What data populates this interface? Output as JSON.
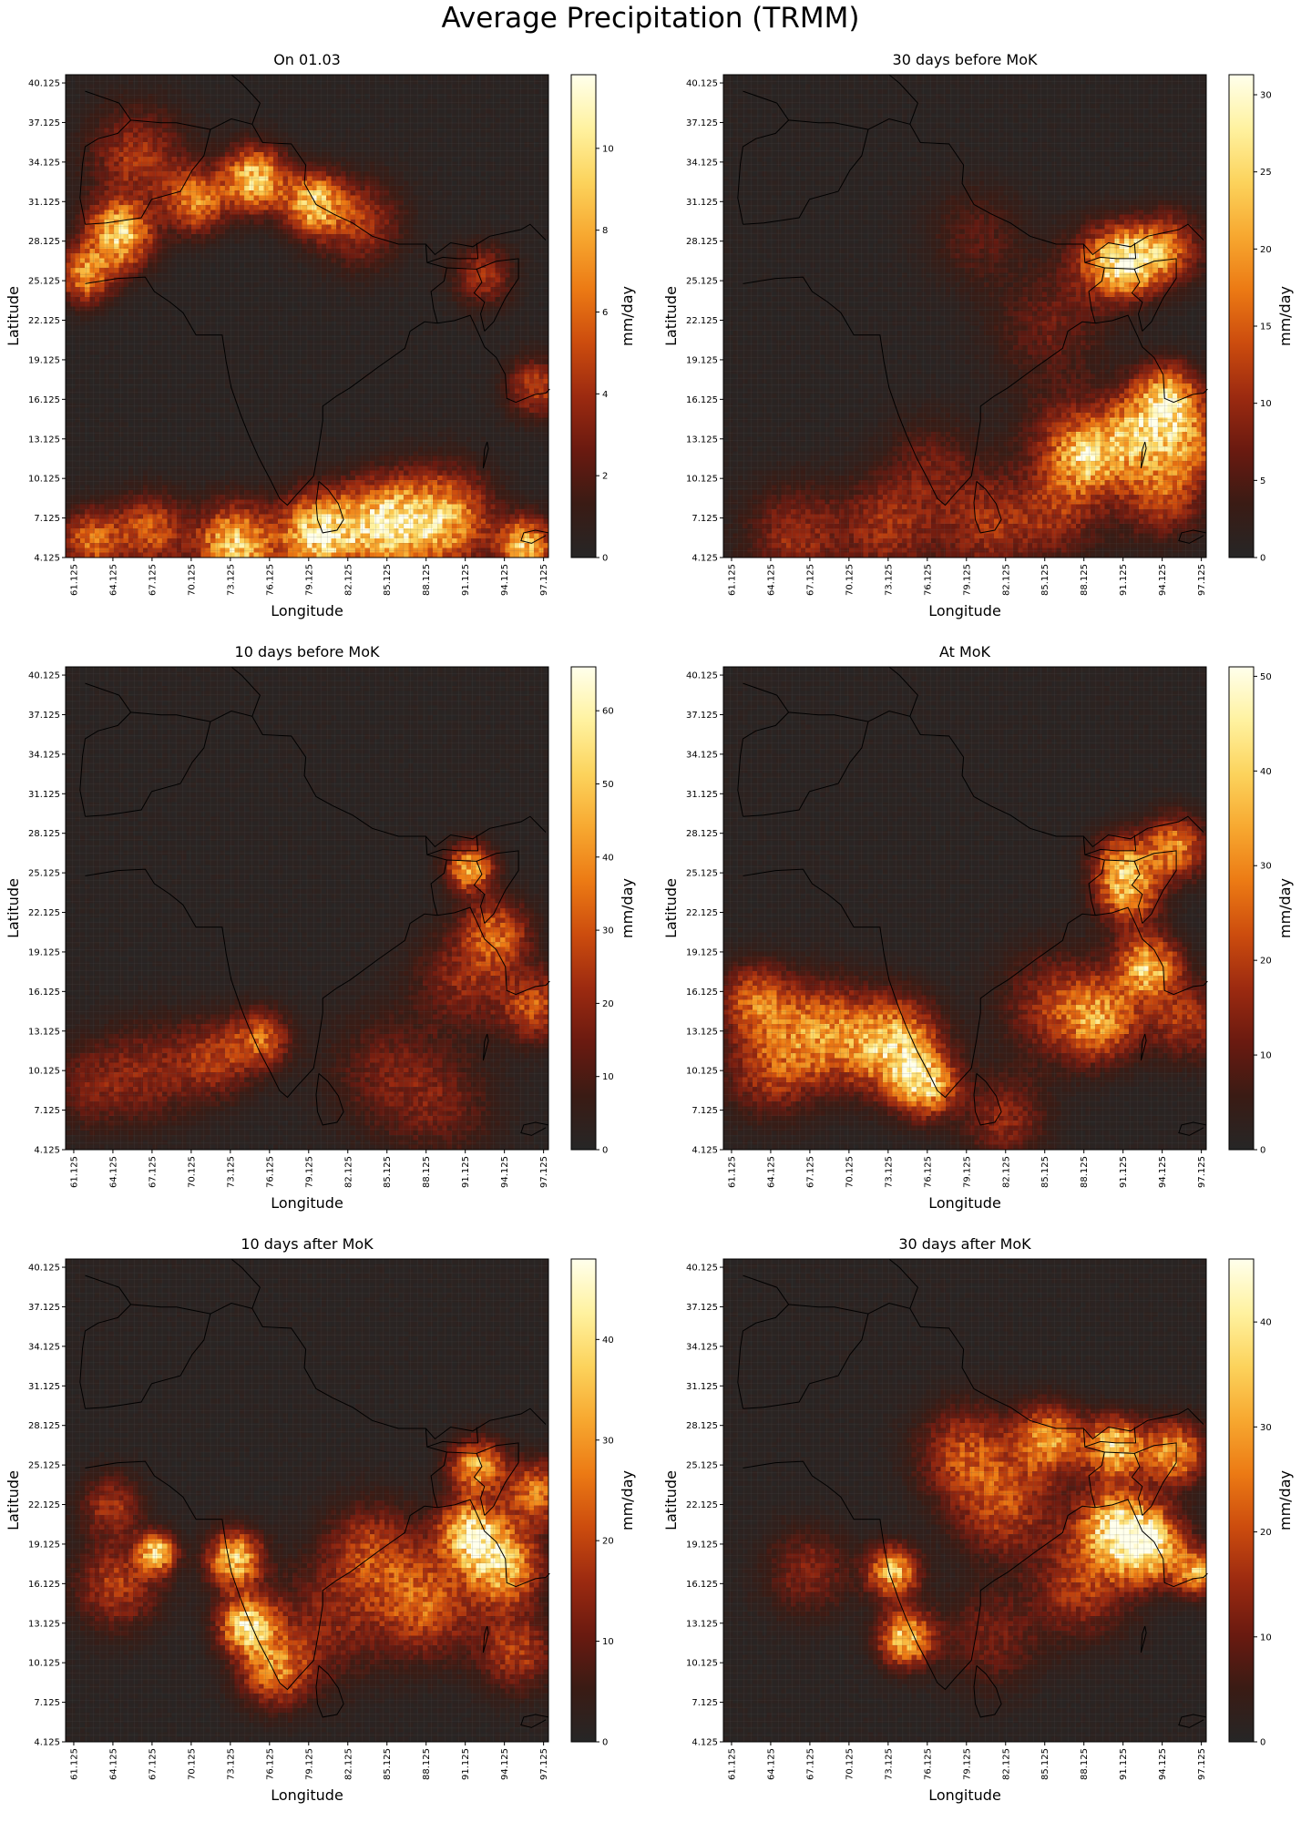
{
  "figure": {
    "title": "Average Precipitation (TRMM)"
  },
  "colormap": [
    "#262626",
    "#3a1b14",
    "#6a1a10",
    "#9c2a10",
    "#cc4c0e",
    "#ec7a14",
    "#f7a830",
    "#fcd35c",
    "#fff2a0",
    "#ffffec"
  ],
  "colors": {
    "coastline": "#000000",
    "grid": "#5a5a5a"
  },
  "chart_data": [
    {
      "type": "heatmap",
      "title": "On 01.03",
      "xlabel": "Longitude",
      "ylabel": "Latitude",
      "colorbar_label": "mm/day",
      "x_ticks": [
        "61.125",
        "64.125",
        "67.125",
        "70.125",
        "73.125",
        "76.125",
        "79.125",
        "82.125",
        "85.125",
        "88.125",
        "91.125",
        "94.125",
        "97.125"
      ],
      "y_ticks": [
        "40.125",
        "37.125",
        "34.125",
        "31.125",
        "28.125",
        "25.125",
        "22.125",
        "19.125",
        "16.125",
        "13.125",
        "10.125",
        "7.125",
        "4.125"
      ],
      "xlim": [
        60.5,
        97.5
      ],
      "ylim": [
        4.125,
        40.75
      ],
      "colorbar_range": [
        0,
        11.8
      ],
      "colorbar_ticks": [
        0,
        2,
        4,
        6,
        8,
        10
      ],
      "hotspots": [
        {
          "lon": 64.6,
          "lat": 28.6,
          "value": 9.5,
          "sigma": 1.7
        },
        {
          "lon": 62.0,
          "lat": 25.5,
          "value": 7.0,
          "sigma": 1.4
        },
        {
          "lon": 70.5,
          "lat": 31.2,
          "value": 6.5,
          "sigma": 1.6
        },
        {
          "lon": 75.0,
          "lat": 32.8,
          "value": 9.5,
          "sigma": 1.6
        },
        {
          "lon": 79.5,
          "lat": 31.0,
          "value": 9.0,
          "sigma": 1.5
        },
        {
          "lon": 83.0,
          "lat": 29.5,
          "value": 4.0,
          "sigma": 2.2
        },
        {
          "lon": 66.0,
          "lat": 34.5,
          "value": 4.0,
          "sigma": 2.5
        },
        {
          "lon": 62.5,
          "lat": 5.4,
          "value": 6.0,
          "sigma": 1.6
        },
        {
          "lon": 67.0,
          "lat": 6.2,
          "value": 5.5,
          "sigma": 1.8
        },
        {
          "lon": 73.5,
          "lat": 5.0,
          "value": 9.5,
          "sigma": 2.0
        },
        {
          "lon": 80.0,
          "lat": 6.0,
          "value": 10.5,
          "sigma": 2.0
        },
        {
          "lon": 85.0,
          "lat": 6.6,
          "value": 10.0,
          "sigma": 2.2
        },
        {
          "lon": 89.5,
          "lat": 7.0,
          "value": 8.0,
          "sigma": 2.4
        },
        {
          "lon": 95.8,
          "lat": 5.0,
          "value": 9.0,
          "sigma": 1.4
        },
        {
          "lon": 96.5,
          "lat": 17.0,
          "value": 4.5,
          "sigma": 1.5
        },
        {
          "lon": 92.5,
          "lat": 25.5,
          "value": 4.0,
          "sigma": 1.5
        }
      ]
    },
    {
      "type": "heatmap",
      "title": "30 days before MoK",
      "xlabel": "Longitude",
      "ylabel": "Latitude",
      "colorbar_label": "mm/day",
      "x_ticks": [
        "61.125",
        "64.125",
        "67.125",
        "70.125",
        "73.125",
        "76.125",
        "79.125",
        "82.125",
        "85.125",
        "88.125",
        "91.125",
        "94.125",
        "97.125"
      ],
      "y_ticks": [
        "40.125",
        "37.125",
        "34.125",
        "31.125",
        "28.125",
        "25.125",
        "22.125",
        "19.125",
        "16.125",
        "13.125",
        "10.125",
        "7.125",
        "4.125"
      ],
      "xlim": [
        60.5,
        97.5
      ],
      "ylim": [
        4.125,
        40.75
      ],
      "colorbar_range": [
        0,
        31.3
      ],
      "colorbar_ticks": [
        0,
        5,
        10,
        15,
        20,
        25,
        30
      ],
      "hotspots": [
        {
          "lon": 91.5,
          "lat": 26.5,
          "value": 24.0,
          "sigma": 1.6
        },
        {
          "lon": 94.5,
          "lat": 27.5,
          "value": 15.0,
          "sigma": 1.8
        },
        {
          "lon": 89.5,
          "lat": 26.5,
          "value": 11.0,
          "sigma": 2.0
        },
        {
          "lon": 94.5,
          "lat": 16.2,
          "value": 22.0,
          "sigma": 1.7
        },
        {
          "lon": 92.0,
          "lat": 13.5,
          "value": 18.0,
          "sigma": 2.0
        },
        {
          "lon": 88.5,
          "lat": 11.5,
          "value": 16.0,
          "sigma": 1.8
        },
        {
          "lon": 96.0,
          "lat": 13.0,
          "value": 15.0,
          "sigma": 2.0
        },
        {
          "lon": 94.0,
          "lat": 9.0,
          "value": 13.0,
          "sigma": 2.2
        },
        {
          "lon": 87.0,
          "lat": 13.0,
          "value": 9.0,
          "sigma": 2.5
        },
        {
          "lon": 66.0,
          "lat": 5.8,
          "value": 9.5,
          "sigma": 2.5
        },
        {
          "lon": 73.0,
          "lat": 6.3,
          "value": 10.0,
          "sigma": 2.5
        },
        {
          "lon": 80.5,
          "lat": 6.5,
          "value": 9.5,
          "sigma": 2.5
        },
        {
          "lon": 86.0,
          "lat": 7.5,
          "value": 9.0,
          "sigma": 2.5
        },
        {
          "lon": 76.5,
          "lat": 11.0,
          "value": 6.0,
          "sigma": 2.5
        },
        {
          "lon": 80.0,
          "lat": 28.5,
          "value": 5.0,
          "sigma": 2.5
        },
        {
          "lon": 85.5,
          "lat": 21.5,
          "value": 6.0,
          "sigma": 3.0
        }
      ]
    },
    {
      "type": "heatmap",
      "title": "10 days before MoK",
      "xlabel": "Longitude",
      "ylabel": "Latitude",
      "colorbar_label": "mm/day",
      "x_ticks": [
        "61.125",
        "64.125",
        "67.125",
        "70.125",
        "73.125",
        "76.125",
        "79.125",
        "82.125",
        "85.125",
        "88.125",
        "91.125",
        "94.125",
        "97.125"
      ],
      "y_ticks": [
        "40.125",
        "37.125",
        "34.125",
        "31.125",
        "28.125",
        "25.125",
        "22.125",
        "19.125",
        "16.125",
        "13.125",
        "10.125",
        "7.125",
        "4.125"
      ],
      "xlim": [
        60.5,
        97.5
      ],
      "ylim": [
        4.125,
        40.75
      ],
      "colorbar_range": [
        0,
        66
      ],
      "colorbar_ticks": [
        0,
        10,
        20,
        30,
        40,
        50,
        60
      ],
      "hotspots": [
        {
          "lon": 91.5,
          "lat": 25.5,
          "value": 45.0,
          "sigma": 1.2
        },
        {
          "lon": 93.5,
          "lat": 20.5,
          "value": 30.0,
          "sigma": 1.8
        },
        {
          "lon": 96.5,
          "lat": 15.0,
          "value": 28.0,
          "sigma": 1.8
        },
        {
          "lon": 91.0,
          "lat": 17.0,
          "value": 18.0,
          "sigma": 2.5
        },
        {
          "lon": 75.5,
          "lat": 12.5,
          "value": 30.0,
          "sigma": 1.5
        },
        {
          "lon": 72.0,
          "lat": 11.0,
          "value": 22.0,
          "sigma": 2.0
        },
        {
          "lon": 67.0,
          "lat": 10.0,
          "value": 16.0,
          "sigma": 2.5
        },
        {
          "lon": 62.5,
          "lat": 9.0,
          "value": 14.0,
          "sigma": 2.2
        },
        {
          "lon": 85.0,
          "lat": 10.0,
          "value": 13.0,
          "sigma": 3.0
        },
        {
          "lon": 89.5,
          "lat": 7.5,
          "value": 12.0,
          "sigma": 2.8
        }
      ]
    },
    {
      "type": "heatmap",
      "title": "At MoK",
      "xlabel": "Longitude",
      "ylabel": "Latitude",
      "colorbar_label": "mm/day",
      "x_ticks": [
        "61.125",
        "64.125",
        "67.125",
        "70.125",
        "73.125",
        "76.125",
        "79.125",
        "82.125",
        "85.125",
        "88.125",
        "91.125",
        "94.125",
        "97.125"
      ],
      "y_ticks": [
        "40.125",
        "37.125",
        "34.125",
        "31.125",
        "28.125",
        "25.125",
        "22.125",
        "19.125",
        "16.125",
        "13.125",
        "10.125",
        "7.125",
        "4.125"
      ],
      "xlim": [
        60.5,
        97.5
      ],
      "ylim": [
        4.125,
        40.75
      ],
      "colorbar_range": [
        0,
        51
      ],
      "colorbar_ticks": [
        0,
        10,
        20,
        30,
        40,
        50
      ],
      "hotspots": [
        {
          "lon": 73.5,
          "lat": 12.0,
          "value": 40.0,
          "sigma": 2.3
        },
        {
          "lon": 76.0,
          "lat": 9.0,
          "value": 36.0,
          "sigma": 1.6
        },
        {
          "lon": 68.0,
          "lat": 13.0,
          "value": 28.0,
          "sigma": 2.5
        },
        {
          "lon": 63.0,
          "lat": 15.5,
          "value": 24.0,
          "sigma": 1.8
        },
        {
          "lon": 64.0,
          "lat": 10.5,
          "value": 18.0,
          "sigma": 2.5
        },
        {
          "lon": 93.0,
          "lat": 18.0,
          "value": 38.0,
          "sigma": 1.6
        },
        {
          "lon": 91.5,
          "lat": 23.5,
          "value": 30.0,
          "sigma": 1.6
        },
        {
          "lon": 89.5,
          "lat": 14.0,
          "value": 28.0,
          "sigma": 2.0
        },
        {
          "lon": 95.0,
          "lat": 27.0,
          "value": 30.0,
          "sigma": 1.6
        },
        {
          "lon": 91.0,
          "lat": 26.0,
          "value": 25.0,
          "sigma": 1.5
        },
        {
          "lon": 96.0,
          "lat": 14.0,
          "value": 18.0,
          "sigma": 2.0
        },
        {
          "lon": 86.0,
          "lat": 15.0,
          "value": 16.0,
          "sigma": 2.8
        },
        {
          "lon": 82.0,
          "lat": 6.5,
          "value": 14.0,
          "sigma": 2.2
        }
      ]
    },
    {
      "type": "heatmap",
      "title": "10 days after MoK",
      "xlabel": "Longitude",
      "ylabel": "Latitude",
      "colorbar_label": "mm/day",
      "x_ticks": [
        "61.125",
        "64.125",
        "67.125",
        "70.125",
        "73.125",
        "76.125",
        "79.125",
        "82.125",
        "85.125",
        "88.125",
        "91.125",
        "94.125",
        "97.125"
      ],
      "y_ticks": [
        "40.125",
        "37.125",
        "34.125",
        "31.125",
        "28.125",
        "25.125",
        "22.125",
        "19.125",
        "16.125",
        "13.125",
        "10.125",
        "7.125",
        "4.125"
      ],
      "xlim": [
        60.5,
        97.5
      ],
      "ylim": [
        4.125,
        40.75
      ],
      "colorbar_range": [
        0,
        48
      ],
      "colorbar_ticks": [
        0,
        10,
        20,
        30,
        40
      ],
      "hotspots": [
        {
          "lon": 73.5,
          "lat": 18.0,
          "value": 38.0,
          "sigma": 1.4
        },
        {
          "lon": 74.5,
          "lat": 13.0,
          "value": 40.0,
          "sigma": 1.5
        },
        {
          "lon": 76.5,
          "lat": 9.5,
          "value": 26.0,
          "sigma": 1.8
        },
        {
          "lon": 67.5,
          "lat": 18.5,
          "value": 36.0,
          "sigma": 1.0
        },
        {
          "lon": 64.5,
          "lat": 16.0,
          "value": 18.0,
          "sigma": 2.2
        },
        {
          "lon": 64.0,
          "lat": 22.0,
          "value": 16.0,
          "sigma": 1.6
        },
        {
          "lon": 91.5,
          "lat": 20.0,
          "value": 40.0,
          "sigma": 1.6
        },
        {
          "lon": 94.0,
          "lat": 17.5,
          "value": 36.0,
          "sigma": 2.0
        },
        {
          "lon": 92.0,
          "lat": 25.0,
          "value": 32.0,
          "sigma": 1.4
        },
        {
          "lon": 96.5,
          "lat": 23.0,
          "value": 26.0,
          "sigma": 1.6
        },
        {
          "lon": 88.0,
          "lat": 14.5,
          "value": 22.0,
          "sigma": 2.6
        },
        {
          "lon": 84.0,
          "lat": 18.5,
          "value": 18.0,
          "sigma": 2.5
        },
        {
          "lon": 80.5,
          "lat": 13.0,
          "value": 12.0,
          "sigma": 3.0
        },
        {
          "lon": 95.0,
          "lat": 11.0,
          "value": 18.0,
          "sigma": 2.0
        }
      ]
    },
    {
      "type": "heatmap",
      "title": "30 days after MoK",
      "xlabel": "Longitude",
      "ylabel": "Latitude",
      "colorbar_label": "mm/day",
      "x_ticks": [
        "61.125",
        "64.125",
        "67.125",
        "70.125",
        "73.125",
        "76.125",
        "79.125",
        "82.125",
        "85.125",
        "88.125",
        "91.125",
        "94.125",
        "97.125"
      ],
      "y_ticks": [
        "40.125",
        "37.125",
        "34.125",
        "31.125",
        "28.125",
        "25.125",
        "22.125",
        "19.125",
        "16.125",
        "13.125",
        "10.125",
        "7.125",
        "4.125"
      ],
      "xlim": [
        60.5,
        97.5
      ],
      "ylim": [
        4.125,
        40.75
      ],
      "colorbar_range": [
        0,
        46
      ],
      "colorbar_ticks": [
        0,
        10,
        20,
        30,
        40
      ],
      "hotspots": [
        {
          "lon": 73.5,
          "lat": 17.0,
          "value": 34.0,
          "sigma": 1.3
        },
        {
          "lon": 74.5,
          "lat": 12.0,
          "value": 36.0,
          "sigma": 1.4
        },
        {
          "lon": 93.0,
          "lat": 19.0,
          "value": 40.0,
          "sigma": 1.8
        },
        {
          "lon": 90.5,
          "lat": 20.5,
          "value": 34.0,
          "sigma": 2.0
        },
        {
          "lon": 90.5,
          "lat": 26.5,
          "value": 36.0,
          "sigma": 1.5
        },
        {
          "lon": 85.5,
          "lat": 27.0,
          "value": 28.0,
          "sigma": 1.8
        },
        {
          "lon": 95.0,
          "lat": 26.0,
          "value": 30.0,
          "sigma": 1.6
        },
        {
          "lon": 79.0,
          "lat": 26.0,
          "value": 18.0,
          "sigma": 2.4
        },
        {
          "lon": 82.0,
          "lat": 22.0,
          "value": 18.0,
          "sigma": 2.6
        },
        {
          "lon": 96.8,
          "lat": 17.0,
          "value": 30.0,
          "sigma": 1.2
        },
        {
          "lon": 88.0,
          "lat": 16.0,
          "value": 16.0,
          "sigma": 2.6
        },
        {
          "lon": 67.0,
          "lat": 17.0,
          "value": 12.0,
          "sigma": 2.2
        },
        {
          "lon": 81.0,
          "lat": 12.0,
          "value": 10.0,
          "sigma": 2.6
        }
      ]
    }
  ]
}
